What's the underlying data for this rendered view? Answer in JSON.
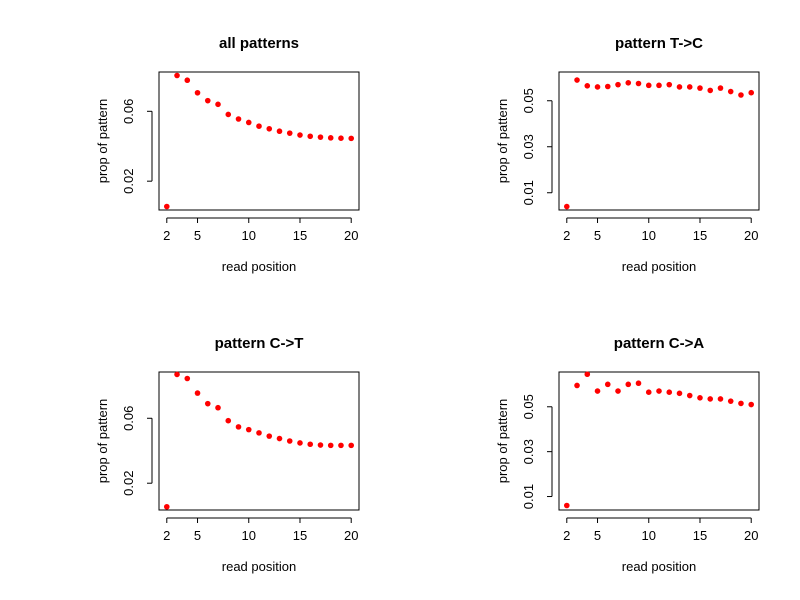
{
  "chart_data": [
    {
      "type": "scatter",
      "title": "all patterns",
      "xlabel": "read position",
      "ylabel": "prop of pattern",
      "x_ticks": [
        2,
        5,
        10,
        15,
        20
      ],
      "y_ticks": [
        0.02,
        0.06
      ],
      "xlim": [
        1.24,
        20.76
      ],
      "ylim": [
        0.0035,
        0.0825
      ],
      "marker_color": "#ff0000",
      "x": [
        2,
        3,
        4,
        5,
        6,
        7,
        8,
        9,
        10,
        11,
        12,
        13,
        14,
        15,
        16,
        17,
        18,
        19,
        20
      ],
      "values": [
        0.0055,
        0.0805,
        0.0778,
        0.0706,
        0.0661,
        0.064,
        0.0582,
        0.0556,
        0.0536,
        0.0515,
        0.05,
        0.0486,
        0.0475,
        0.0464,
        0.0457,
        0.0452,
        0.0448,
        0.0446,
        0.0445
      ]
    },
    {
      "type": "scatter",
      "title": "pattern T->C",
      "xlabel": "read position",
      "ylabel": "prop of pattern",
      "x_ticks": [
        2,
        5,
        10,
        15,
        20
      ],
      "y_ticks": [
        0.01,
        0.03,
        0.05
      ],
      "xlim": [
        1.24,
        20.76
      ],
      "ylim": [
        0.0025,
        0.0625
      ],
      "marker_color": "#ff0000",
      "x": [
        2,
        3,
        4,
        5,
        6,
        7,
        8,
        9,
        10,
        11,
        12,
        13,
        14,
        15,
        16,
        17,
        18,
        19,
        20
      ],
      "values": [
        0.004,
        0.059,
        0.0565,
        0.056,
        0.0562,
        0.057,
        0.0578,
        0.0575,
        0.0567,
        0.0567,
        0.057,
        0.056,
        0.056,
        0.0555,
        0.0545,
        0.0555,
        0.054,
        0.0525,
        0.0535
      ]
    },
    {
      "type": "scatter",
      "title": "pattern C->T",
      "xlabel": "read position",
      "ylabel": "prop of pattern",
      "x_ticks": [
        2,
        5,
        10,
        15,
        20
      ],
      "y_ticks": [
        0.02,
        0.06
      ],
      "xlim": [
        1.24,
        20.76
      ],
      "ylim": [
        0.0035,
        0.0885
      ],
      "marker_color": "#ff0000",
      "x": [
        2,
        3,
        4,
        5,
        6,
        7,
        8,
        9,
        10,
        11,
        12,
        13,
        14,
        15,
        16,
        17,
        18,
        19,
        20
      ],
      "values": [
        0.0055,
        0.087,
        0.0845,
        0.0755,
        0.069,
        0.0665,
        0.0585,
        0.0547,
        0.053,
        0.051,
        0.049,
        0.0475,
        0.046,
        0.0448,
        0.044,
        0.0435,
        0.0433,
        0.0433,
        0.0433
      ]
    },
    {
      "type": "scatter",
      "title": "pattern C->A",
      "xlabel": "read position",
      "ylabel": "prop of pattern",
      "x_ticks": [
        2,
        5,
        10,
        15,
        20
      ],
      "y_ticks": [
        0.01,
        0.03,
        0.05
      ],
      "xlim": [
        1.24,
        20.76
      ],
      "ylim": [
        0.004,
        0.0655
      ],
      "marker_color": "#ff0000",
      "x": [
        2,
        3,
        4,
        5,
        6,
        7,
        8,
        9,
        10,
        11,
        12,
        13,
        14,
        15,
        16,
        17,
        18,
        19,
        20
      ],
      "values": [
        0.006,
        0.0595,
        0.0645,
        0.057,
        0.06,
        0.057,
        0.06,
        0.0605,
        0.0565,
        0.057,
        0.0565,
        0.056,
        0.055,
        0.054,
        0.0535,
        0.0535,
        0.0525,
        0.0515,
        0.051
      ]
    }
  ]
}
